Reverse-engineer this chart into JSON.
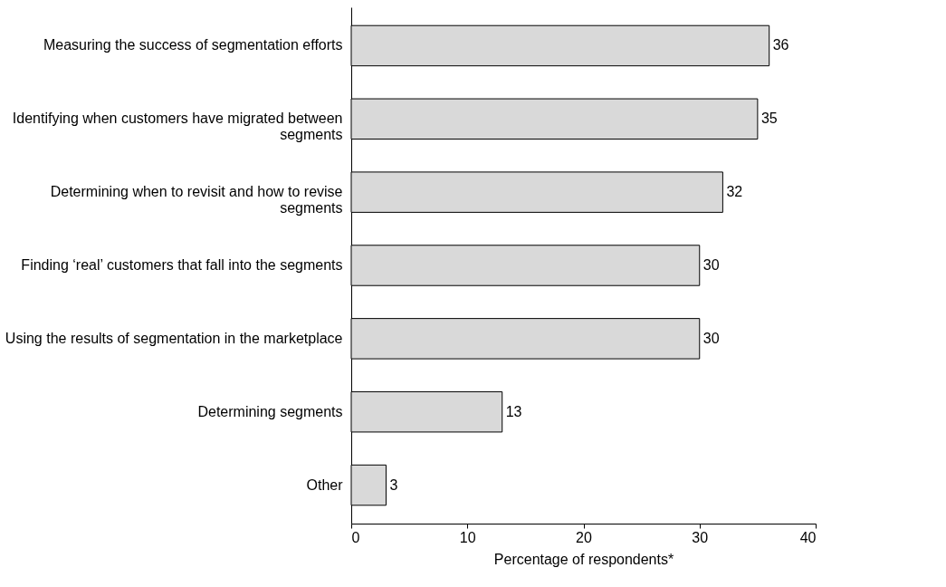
{
  "chart_data": {
    "type": "bar",
    "orientation": "horizontal",
    "categories": [
      "Measuring the success of segmentation efforts",
      "Identifying when customers have migrated between segments",
      "Determining when to revisit and how to revise segments",
      "Finding ‘real’ customers that fall into the segments",
      "Using the results of segmentation in the marketplace",
      "Determining segments",
      "Other"
    ],
    "values": [
      36,
      35,
      32,
      30,
      30,
      13,
      3
    ],
    "color": "#d9d9d9",
    "xlabel": "Percentage of respondents*",
    "xlim": [
      0,
      40
    ],
    "xticks": [
      0,
      10,
      20,
      30,
      40
    ],
    "data_labels": true,
    "grid": false
  }
}
